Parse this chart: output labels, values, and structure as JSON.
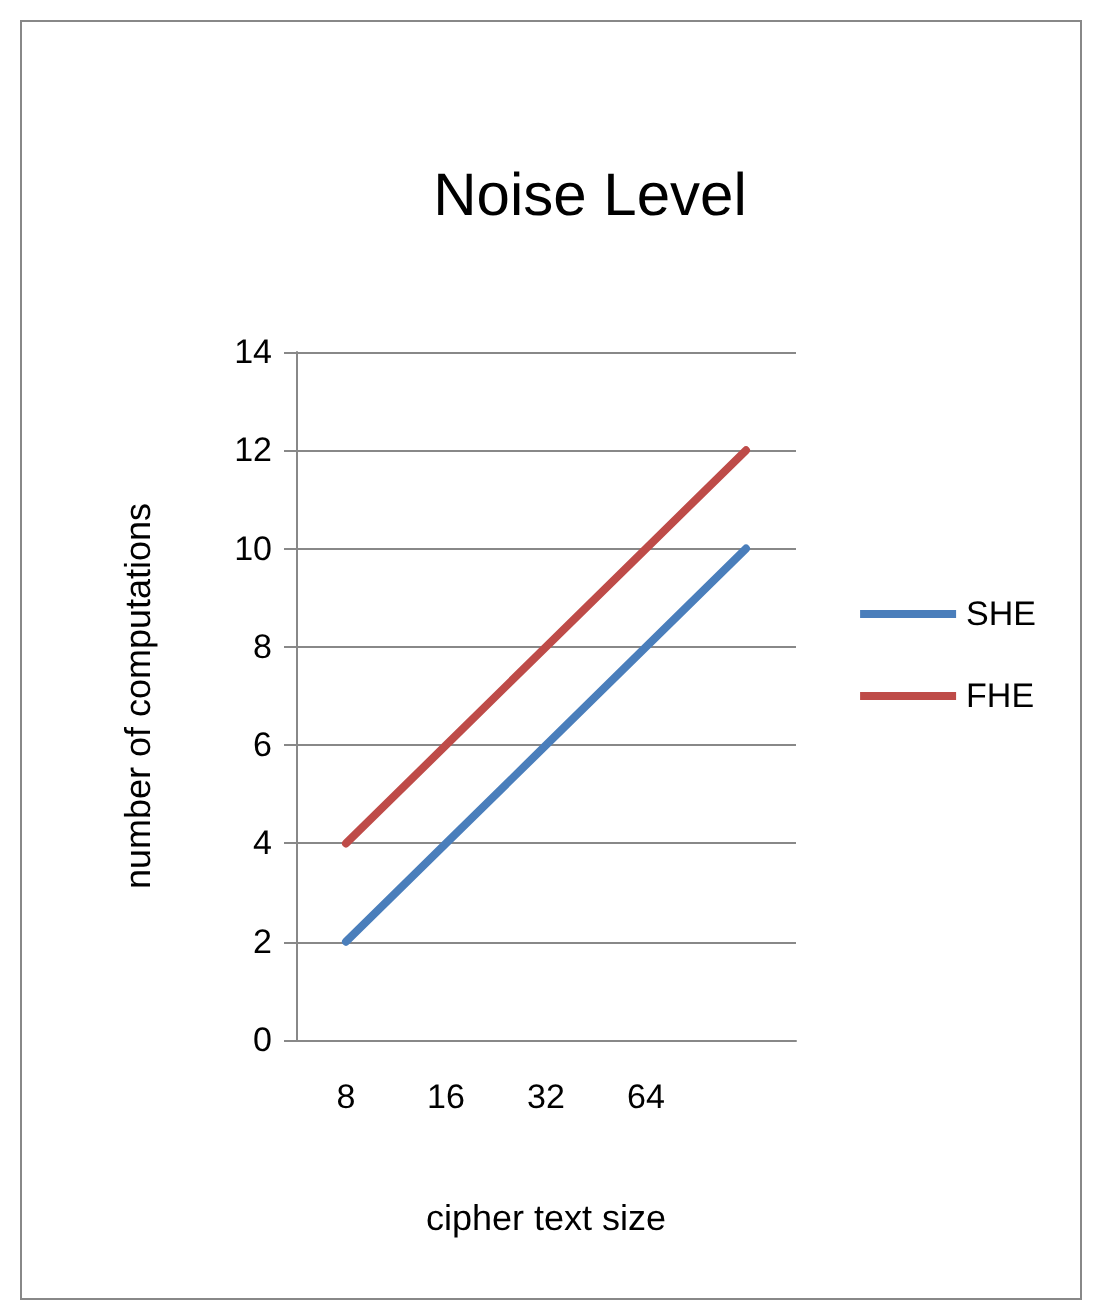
{
  "chart_data": {
    "type": "line",
    "title": "Noise Level",
    "xlabel": "cipher text size",
    "ylabel": "number of computations",
    "categories": [
      "8",
      "16",
      "32",
      "64",
      null
    ],
    "series": [
      {
        "name": "SHE",
        "color": "#4a7ebb",
        "values": [
          2,
          4,
          6,
          8,
          10
        ]
      },
      {
        "name": "FHE",
        "color": "#be4b48",
        "values": [
          4,
          6,
          8,
          10,
          12
        ]
      }
    ],
    "ylim": [
      0,
      14
    ],
    "yticks": [
      0,
      2,
      4,
      6,
      8,
      10,
      12,
      14
    ],
    "grid": "y",
    "legend": "right",
    "marker": "none",
    "line_style": "solid"
  }
}
